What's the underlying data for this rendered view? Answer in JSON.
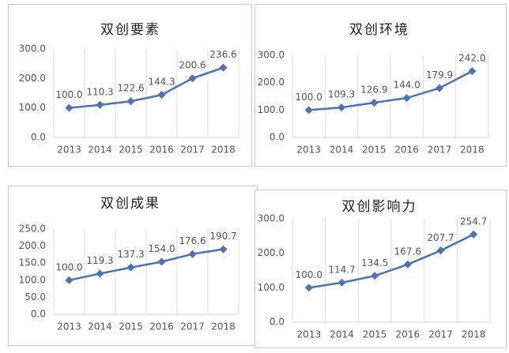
{
  "chart_data": [
    {
      "type": "line",
      "title": "双创要素",
      "categories": [
        "2013",
        "2014",
        "2015",
        "2016",
        "2017",
        "2018"
      ],
      "values": [
        100.0,
        110.3,
        122.6,
        144.3,
        200.6,
        236.6
      ],
      "value_labels": [
        "100.0",
        "110.3",
        "122.6",
        "144.3",
        "200.6",
        "236.6"
      ],
      "color": "#4a73b3",
      "ylim": [
        0,
        300
      ],
      "yticks": [
        {
          "value": 0,
          "label": "0.0"
        },
        {
          "value": 100,
          "label": "100.0"
        },
        {
          "value": 200,
          "label": "200.0"
        },
        {
          "value": 300,
          "label": "300.0"
        }
      ],
      "grid": "x"
    },
    {
      "type": "line",
      "title": "双创环境",
      "categories": [
        "2013",
        "2014",
        "2015",
        "2016",
        "2017",
        "2018"
      ],
      "values": [
        100.0,
        109.3,
        126.9,
        144.0,
        179.9,
        242.0
      ],
      "value_labels": [
        "100.0",
        "109.3",
        "126.9",
        "144.0",
        "179.9",
        "242.0"
      ],
      "color": "#4a73b3",
      "ylim": [
        0,
        300
      ],
      "yticks": [
        {
          "value": 0,
          "label": "0.0"
        },
        {
          "value": 100,
          "label": "100.0"
        },
        {
          "value": 200,
          "label": "200.0"
        },
        {
          "value": 300,
          "label": "300.0"
        }
      ],
      "grid": "x"
    },
    {
      "type": "line",
      "title": "双创成果",
      "categories": [
        "2013",
        "2014",
        "2015",
        "2016",
        "2017",
        "2018"
      ],
      "values": [
        100.0,
        119.3,
        137.3,
        154.0,
        176.6,
        190.7
      ],
      "value_labels": [
        "100.0",
        "119.3",
        "137.3",
        "154.0",
        "176.6",
        "190.7"
      ],
      "color": "#4a73b3",
      "ylim": [
        0,
        250
      ],
      "yticks": [
        {
          "value": 0,
          "label": "0.0"
        },
        {
          "value": 50,
          "label": "50.0"
        },
        {
          "value": 100,
          "label": "100.0"
        },
        {
          "value": 150,
          "label": "150.0"
        },
        {
          "value": 200,
          "label": "200.0"
        },
        {
          "value": 250,
          "label": "250.0"
        }
      ],
      "grid": "x"
    },
    {
      "type": "line",
      "title": "双创影响力",
      "categories": [
        "2013",
        "2014",
        "2015",
        "2016",
        "2017",
        "2018"
      ],
      "values": [
        100.0,
        114.7,
        134.5,
        167.6,
        207.7,
        254.7
      ],
      "value_labels": [
        "100.0",
        "114.7",
        "134.5",
        "167.6",
        "207.7",
        "254.7"
      ],
      "color": "#4a73b3",
      "ylim": [
        0,
        300
      ],
      "yticks": [
        {
          "value": 0,
          "label": "0.0"
        },
        {
          "value": 100,
          "label": "100.0"
        },
        {
          "value": 200,
          "label": "200.0"
        },
        {
          "value": 300,
          "label": "300.0"
        }
      ],
      "grid": "x"
    }
  ]
}
